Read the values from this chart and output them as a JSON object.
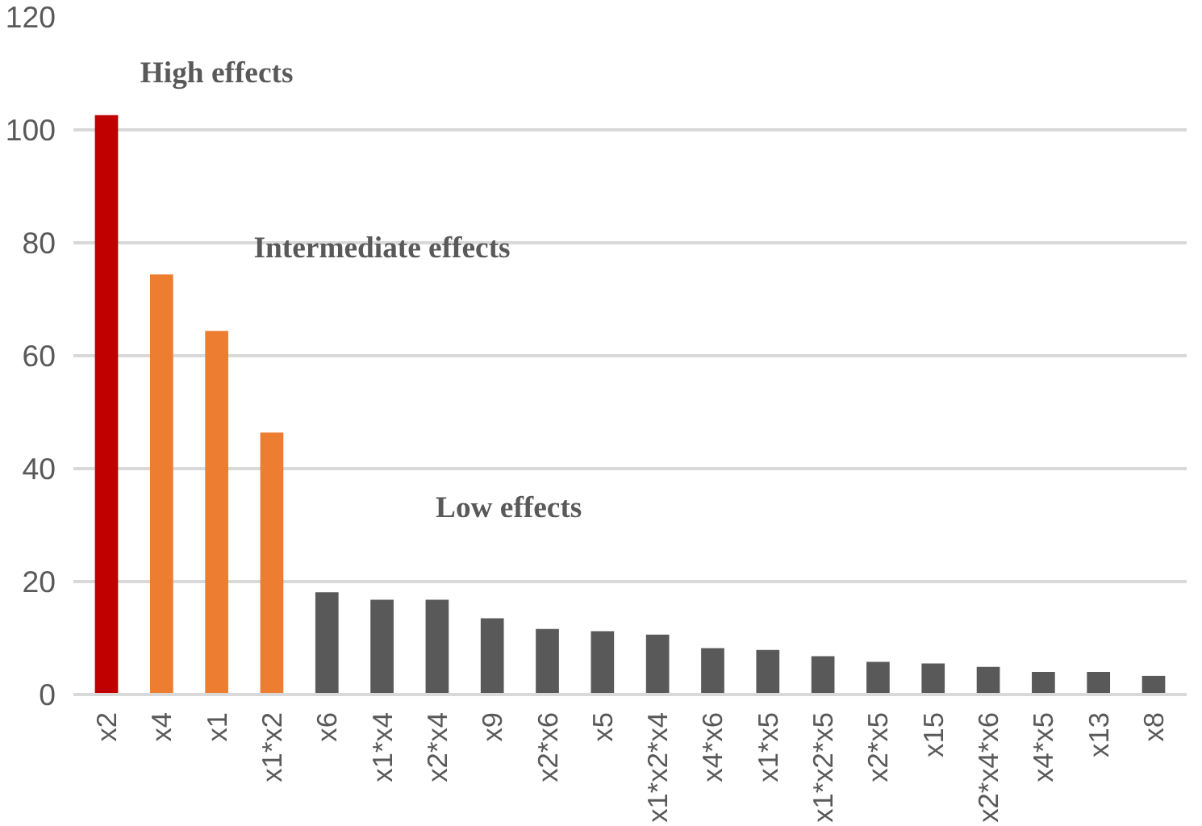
{
  "chart_data": {
    "type": "bar",
    "categories": [
      "x2",
      "x4",
      "x1",
      "x1*x2",
      "x6",
      "x1*x4",
      "x2*x4",
      "x9",
      "x2*x6",
      "x5",
      "x1*x2*x4",
      "x4*x6",
      "x1*x5",
      "x1*x2*x5",
      "x2*x5",
      "x15",
      "x2*x4*x6",
      "x4*x5",
      "x13",
      "x8"
    ],
    "values": [
      102.6,
      74.4,
      64.4,
      46.4,
      18.1,
      16.8,
      16.8,
      13.5,
      11.6,
      11.2,
      10.6,
      8.2,
      7.9,
      6.8,
      5.8,
      5.5,
      4.9,
      4.0,
      4.0,
      3.3
    ],
    "colors": [
      "#c00000",
      "#ed7d31",
      "#ed7d31",
      "#ed7d31",
      "#595959",
      "#595959",
      "#595959",
      "#595959",
      "#595959",
      "#595959",
      "#595959",
      "#595959",
      "#595959",
      "#595959",
      "#595959",
      "#595959",
      "#595959",
      "#595959",
      "#595959",
      "#595959"
    ],
    "ylim": [
      0,
      120
    ],
    "yticks": [
      0,
      20,
      40,
      60,
      80,
      100,
      120
    ],
    "grid": "y",
    "annotations": [
      "High effects",
      "Intermediate effects",
      "Low effects"
    ]
  }
}
